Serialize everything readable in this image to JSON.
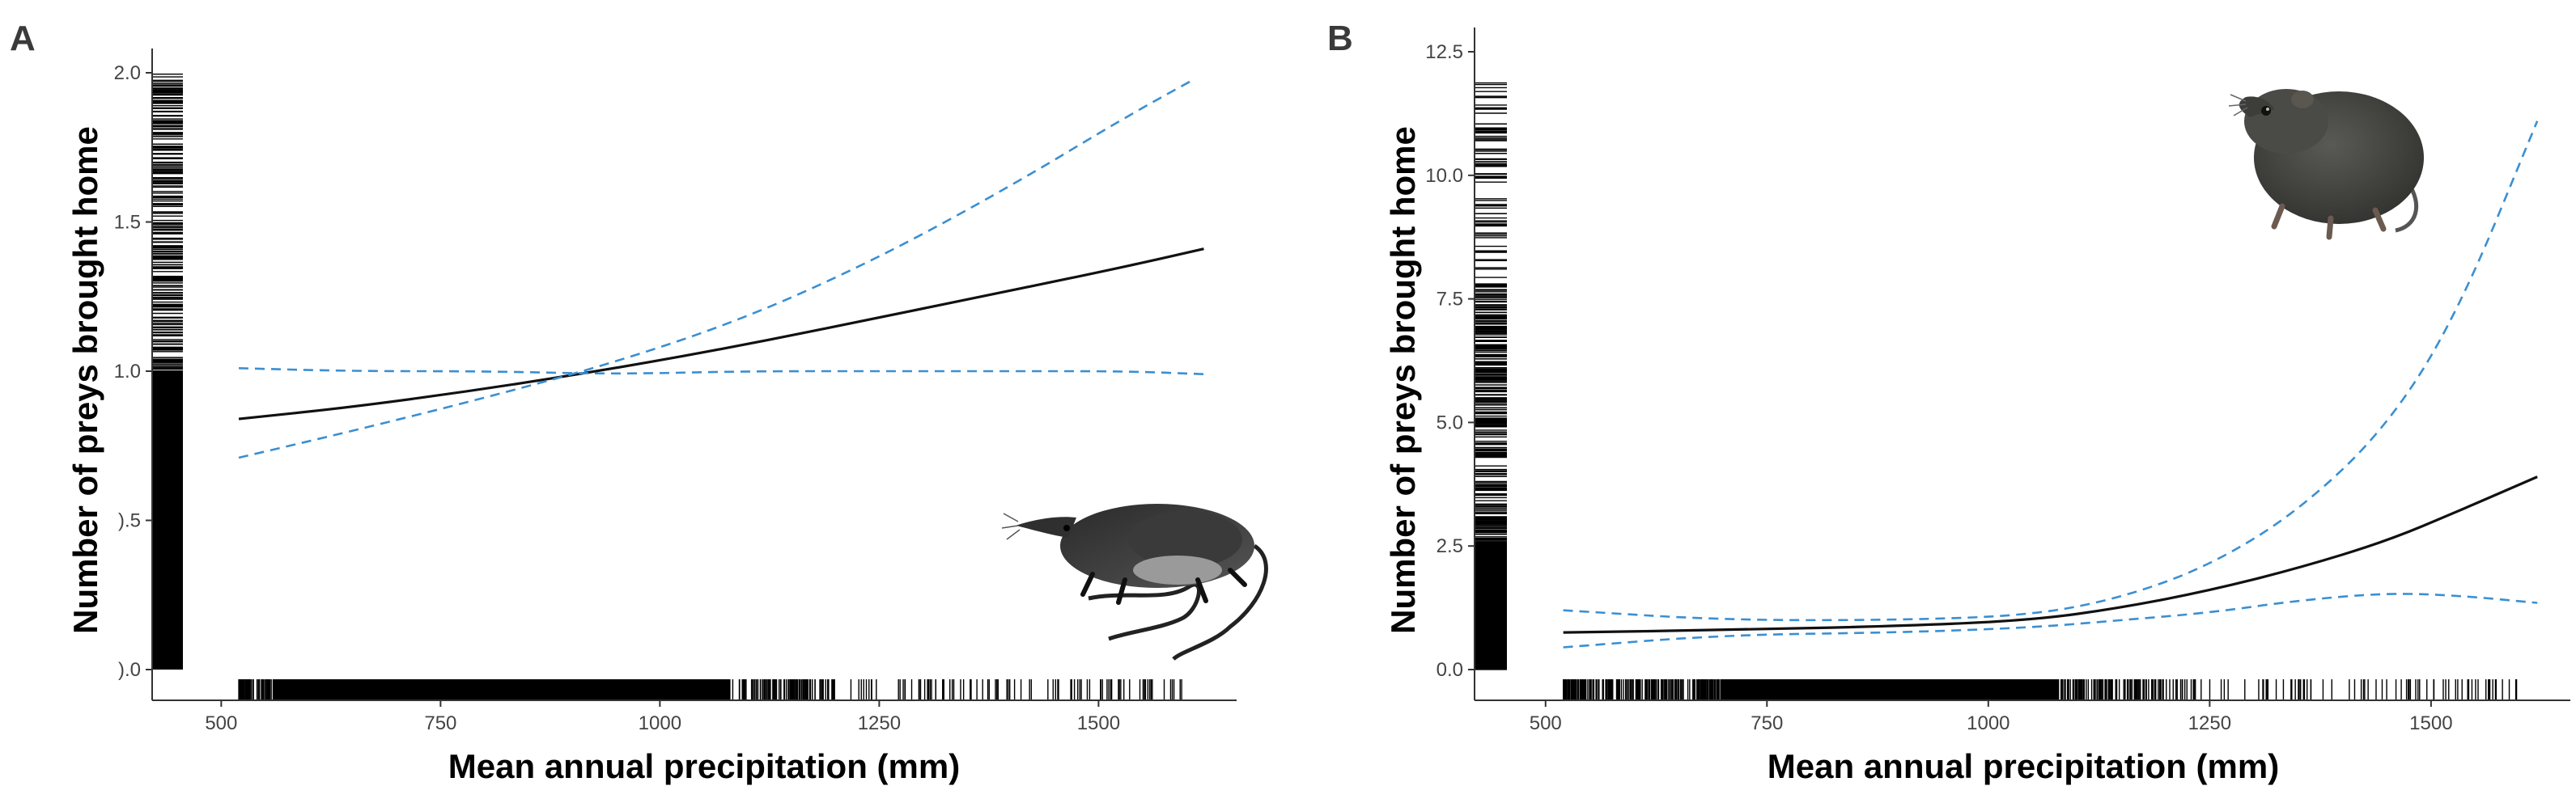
{
  "chart_data": [
    {
      "panel": "A",
      "type": "line",
      "title": "",
      "xlabel": "Mean annual precipitation (mm)",
      "ylabel": "Number of preys brought home",
      "xlim": [
        460,
        1650
      ],
      "ylim": [
        0,
        2.0
      ],
      "xticks": [
        500,
        750,
        1000,
        1250,
        1500
      ],
      "yticks": [
        0.0,
        0.5,
        1.0,
        1.5,
        2.0
      ],
      "ytick_labels": [
        ").0",
        ").5",
        "1.0",
        "1.5",
        "2.0"
      ],
      "grid": false,
      "series": [
        {
          "style": "solid",
          "x": [
            520,
            650,
            800,
            950,
            1100,
            1250,
            1400,
            1530,
            1620
          ],
          "y": [
            0.84,
            0.88,
            0.94,
            1.01,
            1.09,
            1.18,
            1.27,
            1.35,
            1.41
          ]
        },
        {
          "style": "dashed",
          "x": [
            520,
            650,
            800,
            950,
            1100,
            1250,
            1400,
            1530,
            1610
          ],
          "y": [
            0.71,
            0.8,
            0.91,
            1.03,
            1.18,
            1.38,
            1.62,
            1.85,
            1.98
          ]
        },
        {
          "style": "dashed",
          "x": [
            520,
            650,
            800,
            950,
            1100,
            1250,
            1400,
            1530,
            1620
          ],
          "y": [
            1.01,
            1.0,
            1.0,
            0.99,
            1.0,
            1.0,
            1.0,
            1.0,
            0.99
          ]
        }
      ],
      "illustration": "shrew-icon"
    },
    {
      "panel": "B",
      "type": "line",
      "title": "",
      "xlabel": "Mean annual precipitation (mm)",
      "ylabel": "Number of preys brought home",
      "xlim": [
        460,
        1650
      ],
      "ylim": [
        0,
        12.5
      ],
      "xticks": [
        500,
        750,
        1000,
        1250,
        1500
      ],
      "yticks": [
        0.0,
        2.5,
        5.0,
        7.5,
        10.0,
        12.5
      ],
      "ytick_labels": [
        "0.0",
        "2.5",
        "5.0",
        "7.5",
        "10.0",
        "12.5"
      ],
      "grid": false,
      "series": [
        {
          "style": "solid",
          "x": [
            520,
            700,
            900,
            1050,
            1150,
            1250,
            1350,
            1450,
            1530,
            1620
          ],
          "y": [
            0.75,
            0.8,
            0.88,
            1.0,
            1.25,
            1.6,
            2.05,
            2.6,
            3.2,
            3.9
          ]
        },
        {
          "style": "dashed",
          "x": [
            520,
            700,
            900,
            1050,
            1150,
            1250,
            1350,
            1450,
            1530,
            1620
          ],
          "y": [
            1.2,
            1.0,
            1.0,
            1.1,
            1.45,
            2.1,
            3.2,
            4.9,
            7.2,
            11.1
          ]
        },
        {
          "style": "dashed",
          "x": [
            520,
            700,
            900,
            1050,
            1150,
            1250,
            1350,
            1450,
            1530,
            1620
          ],
          "y": [
            0.45,
            0.7,
            0.75,
            0.85,
            1.0,
            1.15,
            1.4,
            1.55,
            1.5,
            1.35
          ]
        }
      ],
      "illustration": "vole-icon"
    }
  ]
}
